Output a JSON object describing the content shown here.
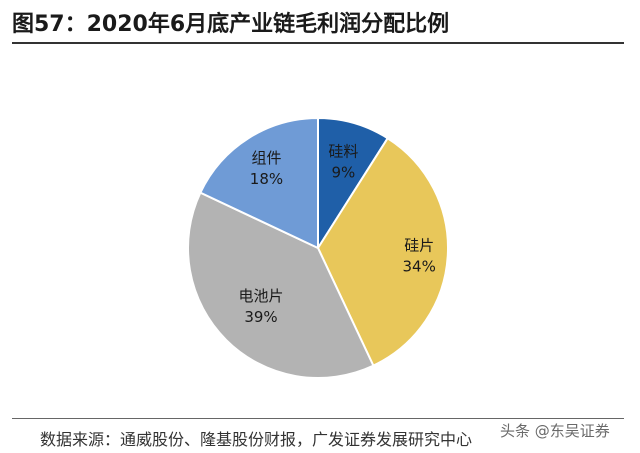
{
  "header": {
    "title": "图57：2020年6月底产业链毛利润分配比例"
  },
  "chart_data": {
    "type": "pie",
    "slices": [
      {
        "label": "硅料",
        "value": 9,
        "value_label": "9%",
        "color": "#1f5fa8"
      },
      {
        "label": "硅片",
        "value": 34,
        "value_label": "34%",
        "color": "#e8c75a"
      },
      {
        "label": "电池片",
        "value": 39,
        "value_label": "39%",
        "color": "#b3b3b3"
      },
      {
        "label": "组件",
        "value": 18,
        "value_label": "18%",
        "color": "#6f9bd6"
      }
    ],
    "start": "12 o'clock",
    "direction": "clockwise",
    "legend": "none"
  },
  "footer": {
    "source": "数据来源：通威股份、隆基股份财报，广发证券发展研究中心",
    "watermark": "头条 @东吴证券"
  }
}
